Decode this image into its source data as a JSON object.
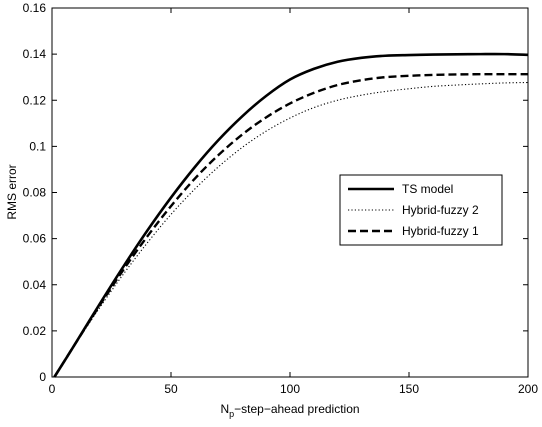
{
  "chart_data": {
    "type": "line",
    "xlabel_main": "N",
    "xlabel_sub": "p",
    "xlabel_rest": "−step−ahead prediction",
    "ylabel": "RMS error",
    "xlim": [
      0,
      200
    ],
    "ylim": [
      0,
      0.16
    ],
    "xticks": [
      0,
      50,
      100,
      150,
      200
    ],
    "xtick_labels": [
      "0",
      "50",
      "100",
      "150",
      "200"
    ],
    "yticks": [
      0,
      0.02,
      0.04,
      0.06,
      0.08,
      0.1,
      0.12,
      0.14,
      0.16
    ],
    "ytick_labels": [
      "0",
      "0.02",
      "0.04",
      "0.06",
      "0.08",
      "0.1",
      "0.12",
      "0.14",
      "0.16"
    ],
    "grid": false,
    "legend_position": "center-right",
    "series": [
      {
        "name": "TS model",
        "style": "solid",
        "x": [
          1,
          10,
          20,
          30,
          40,
          50,
          60,
          70,
          80,
          90,
          100,
          110,
          120,
          130,
          140,
          150,
          160,
          170,
          180,
          190,
          200
        ],
        "y": [
          0.0,
          0.0148,
          0.0316,
          0.0479,
          0.0634,
          0.0778,
          0.091,
          0.1028,
          0.1131,
          0.1219,
          0.129,
          0.1336,
          0.1367,
          0.1384,
          0.1393,
          0.1396,
          0.1398,
          0.1399,
          0.14,
          0.14,
          0.1397
        ]
      },
      {
        "name": "Hybrid-fuzzy 2",
        "style": "dotted",
        "x": [
          1,
          10,
          20,
          30,
          40,
          50,
          60,
          70,
          80,
          90,
          100,
          110,
          120,
          130,
          140,
          150,
          160,
          170,
          180,
          190,
          200
        ],
        "y": [
          0.0,
          0.0145,
          0.03,
          0.0446,
          0.0581,
          0.0705,
          0.0815,
          0.0912,
          0.0996,
          0.1066,
          0.1123,
          0.1168,
          0.12,
          0.1222,
          0.1238,
          0.125,
          0.126,
          0.1266,
          0.1271,
          0.1275,
          0.1277
        ]
      },
      {
        "name": "Hybrid-fuzzy 1",
        "style": "dashed",
        "x": [
          1,
          10,
          20,
          30,
          40,
          50,
          60,
          70,
          80,
          90,
          100,
          110,
          120,
          130,
          140,
          150,
          160,
          170,
          180,
          190,
          200
        ],
        "y": [
          0.0,
          0.0148,
          0.031,
          0.0465,
          0.0609,
          0.0741,
          0.086,
          0.0963,
          0.1052,
          0.1126,
          0.1186,
          0.1232,
          0.1266,
          0.1287,
          0.13,
          0.1306,
          0.131,
          0.1312,
          0.1313,
          0.1313,
          0.1313
        ]
      }
    ],
    "legend_order": [
      "TS model",
      "Hybrid-fuzzy 2",
      "Hybrid-fuzzy 1"
    ]
  }
}
